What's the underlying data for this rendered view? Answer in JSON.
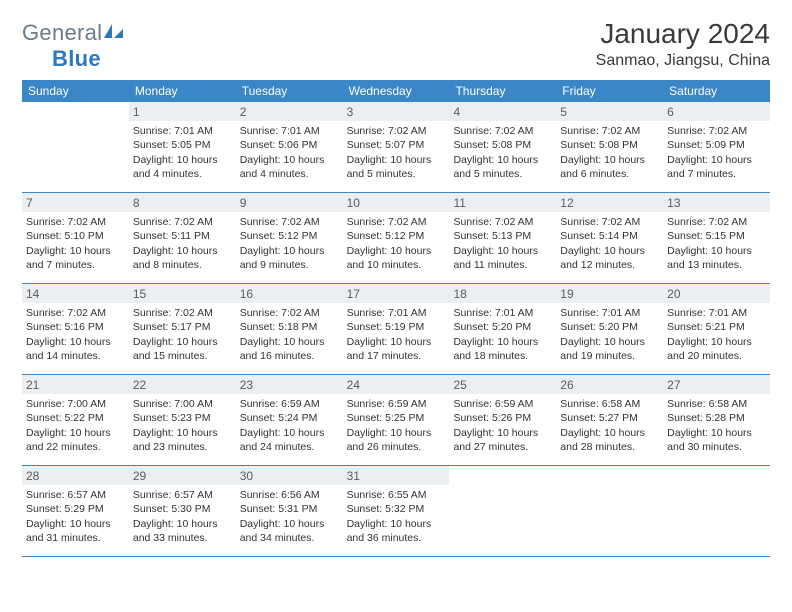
{
  "logo": {
    "general": "General",
    "blue": "Blue"
  },
  "title": "January 2024",
  "location": "Sanmao, Jiangsu, China",
  "colors": {
    "header_bg": "#3b86c6",
    "header_text": "#ffffff",
    "daynum_bg": "#eceff1",
    "logo_gray": "#6b7b8a",
    "logo_blue": "#2f78bc",
    "border": "#3b86c6"
  },
  "day_names": [
    "Sunday",
    "Monday",
    "Tuesday",
    "Wednesday",
    "Thursday",
    "Friday",
    "Saturday"
  ],
  "weeks": [
    [
      {
        "n": "",
        "sr": "",
        "ss": "",
        "dl": ""
      },
      {
        "n": "1",
        "sr": "Sunrise: 7:01 AM",
        "ss": "Sunset: 5:05 PM",
        "dl": "Daylight: 10 hours and 4 minutes."
      },
      {
        "n": "2",
        "sr": "Sunrise: 7:01 AM",
        "ss": "Sunset: 5:06 PM",
        "dl": "Daylight: 10 hours and 4 minutes."
      },
      {
        "n": "3",
        "sr": "Sunrise: 7:02 AM",
        "ss": "Sunset: 5:07 PM",
        "dl": "Daylight: 10 hours and 5 minutes."
      },
      {
        "n": "4",
        "sr": "Sunrise: 7:02 AM",
        "ss": "Sunset: 5:08 PM",
        "dl": "Daylight: 10 hours and 5 minutes."
      },
      {
        "n": "5",
        "sr": "Sunrise: 7:02 AM",
        "ss": "Sunset: 5:08 PM",
        "dl": "Daylight: 10 hours and 6 minutes."
      },
      {
        "n": "6",
        "sr": "Sunrise: 7:02 AM",
        "ss": "Sunset: 5:09 PM",
        "dl": "Daylight: 10 hours and 7 minutes."
      }
    ],
    [
      {
        "n": "7",
        "sr": "Sunrise: 7:02 AM",
        "ss": "Sunset: 5:10 PM",
        "dl": "Daylight: 10 hours and 7 minutes."
      },
      {
        "n": "8",
        "sr": "Sunrise: 7:02 AM",
        "ss": "Sunset: 5:11 PM",
        "dl": "Daylight: 10 hours and 8 minutes."
      },
      {
        "n": "9",
        "sr": "Sunrise: 7:02 AM",
        "ss": "Sunset: 5:12 PM",
        "dl": "Daylight: 10 hours and 9 minutes."
      },
      {
        "n": "10",
        "sr": "Sunrise: 7:02 AM",
        "ss": "Sunset: 5:12 PM",
        "dl": "Daylight: 10 hours and 10 minutes."
      },
      {
        "n": "11",
        "sr": "Sunrise: 7:02 AM",
        "ss": "Sunset: 5:13 PM",
        "dl": "Daylight: 10 hours and 11 minutes."
      },
      {
        "n": "12",
        "sr": "Sunrise: 7:02 AM",
        "ss": "Sunset: 5:14 PM",
        "dl": "Daylight: 10 hours and 12 minutes."
      },
      {
        "n": "13",
        "sr": "Sunrise: 7:02 AM",
        "ss": "Sunset: 5:15 PM",
        "dl": "Daylight: 10 hours and 13 minutes."
      }
    ],
    [
      {
        "n": "14",
        "sr": "Sunrise: 7:02 AM",
        "ss": "Sunset: 5:16 PM",
        "dl": "Daylight: 10 hours and 14 minutes."
      },
      {
        "n": "15",
        "sr": "Sunrise: 7:02 AM",
        "ss": "Sunset: 5:17 PM",
        "dl": "Daylight: 10 hours and 15 minutes."
      },
      {
        "n": "16",
        "sr": "Sunrise: 7:02 AM",
        "ss": "Sunset: 5:18 PM",
        "dl": "Daylight: 10 hours and 16 minutes."
      },
      {
        "n": "17",
        "sr": "Sunrise: 7:01 AM",
        "ss": "Sunset: 5:19 PM",
        "dl": "Daylight: 10 hours and 17 minutes."
      },
      {
        "n": "18",
        "sr": "Sunrise: 7:01 AM",
        "ss": "Sunset: 5:20 PM",
        "dl": "Daylight: 10 hours and 18 minutes."
      },
      {
        "n": "19",
        "sr": "Sunrise: 7:01 AM",
        "ss": "Sunset: 5:20 PM",
        "dl": "Daylight: 10 hours and 19 minutes."
      },
      {
        "n": "20",
        "sr": "Sunrise: 7:01 AM",
        "ss": "Sunset: 5:21 PM",
        "dl": "Daylight: 10 hours and 20 minutes."
      }
    ],
    [
      {
        "n": "21",
        "sr": "Sunrise: 7:00 AM",
        "ss": "Sunset: 5:22 PM",
        "dl": "Daylight: 10 hours and 22 minutes."
      },
      {
        "n": "22",
        "sr": "Sunrise: 7:00 AM",
        "ss": "Sunset: 5:23 PM",
        "dl": "Daylight: 10 hours and 23 minutes."
      },
      {
        "n": "23",
        "sr": "Sunrise: 6:59 AM",
        "ss": "Sunset: 5:24 PM",
        "dl": "Daylight: 10 hours and 24 minutes."
      },
      {
        "n": "24",
        "sr": "Sunrise: 6:59 AM",
        "ss": "Sunset: 5:25 PM",
        "dl": "Daylight: 10 hours and 26 minutes."
      },
      {
        "n": "25",
        "sr": "Sunrise: 6:59 AM",
        "ss": "Sunset: 5:26 PM",
        "dl": "Daylight: 10 hours and 27 minutes."
      },
      {
        "n": "26",
        "sr": "Sunrise: 6:58 AM",
        "ss": "Sunset: 5:27 PM",
        "dl": "Daylight: 10 hours and 28 minutes."
      },
      {
        "n": "27",
        "sr": "Sunrise: 6:58 AM",
        "ss": "Sunset: 5:28 PM",
        "dl": "Daylight: 10 hours and 30 minutes."
      }
    ],
    [
      {
        "n": "28",
        "sr": "Sunrise: 6:57 AM",
        "ss": "Sunset: 5:29 PM",
        "dl": "Daylight: 10 hours and 31 minutes."
      },
      {
        "n": "29",
        "sr": "Sunrise: 6:57 AM",
        "ss": "Sunset: 5:30 PM",
        "dl": "Daylight: 10 hours and 33 minutes."
      },
      {
        "n": "30",
        "sr": "Sunrise: 6:56 AM",
        "ss": "Sunset: 5:31 PM",
        "dl": "Daylight: 10 hours and 34 minutes."
      },
      {
        "n": "31",
        "sr": "Sunrise: 6:55 AM",
        "ss": "Sunset: 5:32 PM",
        "dl": "Daylight: 10 hours and 36 minutes."
      },
      {
        "n": "",
        "sr": "",
        "ss": "",
        "dl": ""
      },
      {
        "n": "",
        "sr": "",
        "ss": "",
        "dl": ""
      },
      {
        "n": "",
        "sr": "",
        "ss": "",
        "dl": ""
      }
    ]
  ]
}
